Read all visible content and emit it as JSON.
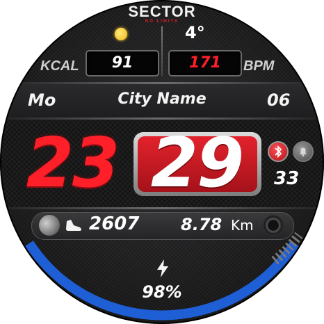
{
  "brand": {
    "name": "SECTOR",
    "tagline": "NO LIMITS"
  },
  "weather": {
    "icon": "sun-icon",
    "temperature": "4°"
  },
  "health": {
    "kcal_label": "KCAL",
    "kcal_value": "91",
    "bpm_label": "BPM",
    "bpm_value": "171"
  },
  "date": {
    "day": "Mo",
    "city": "City Name",
    "day_number": "06"
  },
  "time": {
    "hours": "23",
    "minutes": "29",
    "seconds": "33"
  },
  "status": {
    "bluetooth_icon": "bluetooth-icon",
    "bell_icon": "bell-icon"
  },
  "activity": {
    "moon_icon": "moon-phase-icon",
    "steps_icon": "shoe-icon",
    "steps": "2607",
    "distance": "8.78",
    "distance_unit": "Km"
  },
  "battery": {
    "icon": "bolt-icon",
    "level": "98%",
    "level_fraction": 0.98
  },
  "colors": {
    "accent_red": "#e3222c",
    "bpm_red": "#ff1f2a",
    "arc_blue": "#1e5fd6",
    "sun_yellow": "#f5c021"
  }
}
